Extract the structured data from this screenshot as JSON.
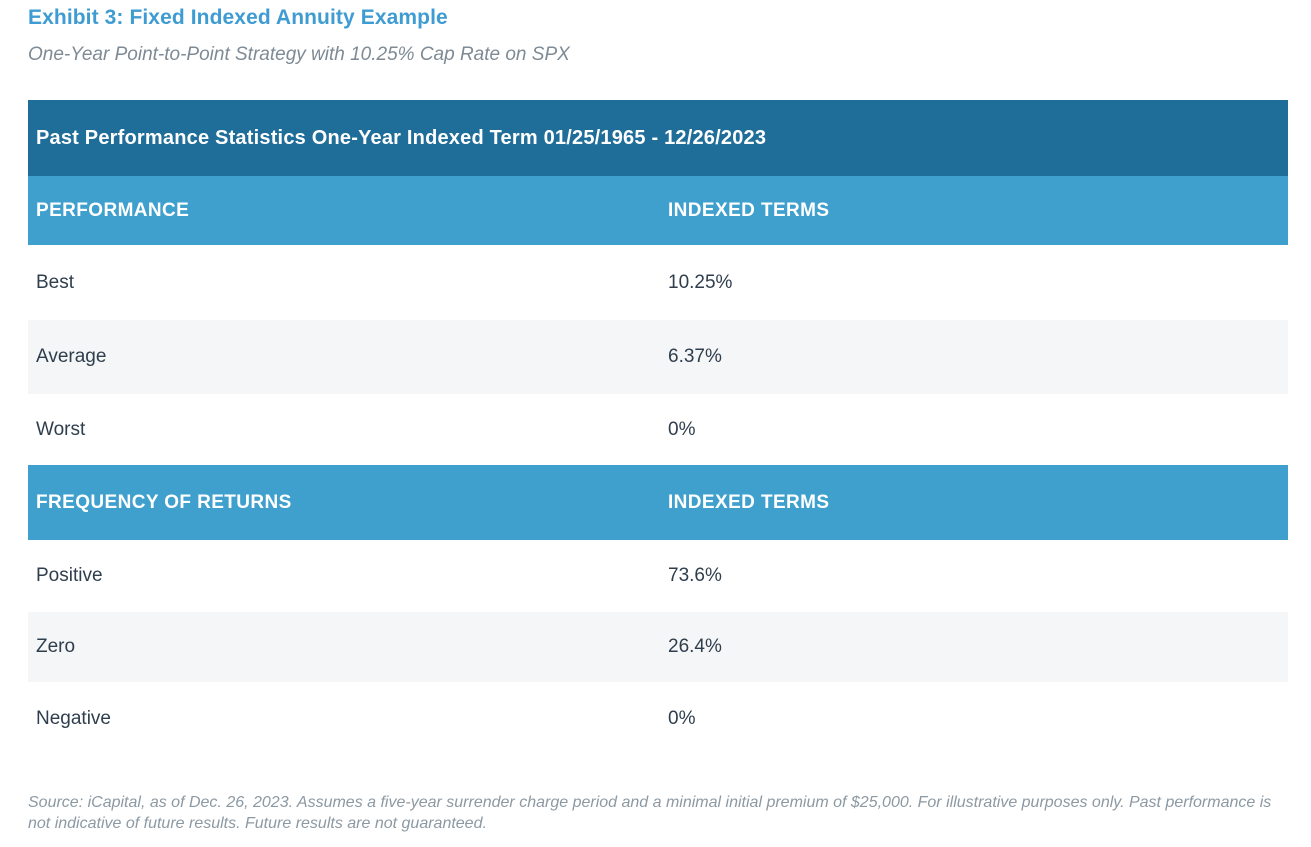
{
  "header": {
    "title": "Exhibit 3: Fixed Indexed Annuity Example",
    "subtitle": "One-Year Point-to-Point Strategy with 10.25% Cap Rate on SPX"
  },
  "table": {
    "title_bar": "Past Performance Statistics One-Year Indexed Term 01/25/1965 - 12/26/2023",
    "sections": [
      {
        "header": {
          "col1": "PERFORMANCE",
          "col2": "INDEXED TERMS"
        },
        "rows": [
          {
            "label": "Best",
            "value": "10.25%"
          },
          {
            "label": "Average",
            "value": "6.37%"
          },
          {
            "label": "Worst",
            "value": "0%"
          }
        ]
      },
      {
        "header": {
          "col1": "FREQUENCY OF RETURNS",
          "col2": "INDEXED TERMS"
        },
        "rows": [
          {
            "label": "Positive",
            "value": "73.6%"
          },
          {
            "label": "Zero",
            "value": "26.4%"
          },
          {
            "label": "Negative",
            "value": "0%"
          }
        ]
      }
    ]
  },
  "footer": {
    "source": "Source: iCapital, as of Dec. 26, 2023. Assumes a five-year surrender charge period and a minimal initial premium of $25,000. For illustrative purposes only. Past performance is not indicative of future results. Future results are not guaranteed."
  },
  "colors": {
    "title_blue": "#3E9CD2",
    "dark_header_bg": "#1F6D99",
    "light_header_bg": "#3FA0CE",
    "row_alt_bg": "#F5F6F7",
    "row_text": "#2F3E4D",
    "subtitle_gray": "#7E8A94",
    "footer_gray": "#8C99A3"
  },
  "chart_data": {
    "type": "table",
    "title": "Past Performance Statistics One-Year Indexed Term 01/25/1965 - 12/26/2023",
    "tables": [
      {
        "columns": [
          "PERFORMANCE",
          "INDEXED TERMS"
        ],
        "rows": [
          [
            "Best",
            "10.25%"
          ],
          [
            "Average",
            "6.37%"
          ],
          [
            "Worst",
            "0%"
          ]
        ]
      },
      {
        "columns": [
          "FREQUENCY OF RETURNS",
          "INDEXED TERMS"
        ],
        "rows": [
          [
            "Positive",
            "73.6%"
          ],
          [
            "Zero",
            "26.4%"
          ],
          [
            "Negative",
            "0%"
          ]
        ]
      }
    ]
  }
}
